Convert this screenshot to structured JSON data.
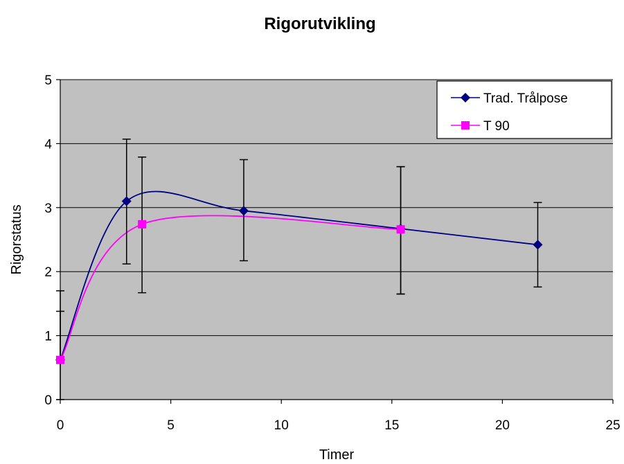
{
  "chart_data": {
    "type": "line",
    "title": "Rigorutvikling",
    "xlabel": "Timer",
    "ylabel": "Rigorstatus",
    "xlim": [
      0,
      25
    ],
    "ylim": [
      0,
      5
    ],
    "x_ticks": [
      0,
      5,
      10,
      15,
      20,
      25
    ],
    "y_ticks": [
      0,
      1,
      2,
      3,
      4,
      5
    ],
    "grid": "horizontal",
    "legend_position": "top-right",
    "plot_background": "#c0c0c0",
    "series": [
      {
        "name": "Trad. Trålpose",
        "color": "#000080",
        "marker": "diamond",
        "x": [
          0,
          3,
          8.3,
          15.4,
          21.6
        ],
        "y": [
          0.62,
          3.1,
          2.95,
          2.67,
          2.42
        ],
        "error": [
          [
            0.62,
            1.38
          ],
          [
            2.12,
            4.07
          ],
          [
            2.17,
            3.75
          ],
          [
            1.65,
            3.64
          ],
          [
            1.76,
            3.08
          ]
        ]
      },
      {
        "name": "T 90",
        "color": "#ff00ff",
        "marker": "square",
        "x": [
          0,
          3.7,
          15.4
        ],
        "y": [
          0.62,
          2.74,
          2.66
        ],
        "error": [
          [
            0,
            1.7
          ],
          [
            1.67,
            3.79
          ],
          [
            1.65,
            3.64
          ]
        ]
      }
    ]
  }
}
